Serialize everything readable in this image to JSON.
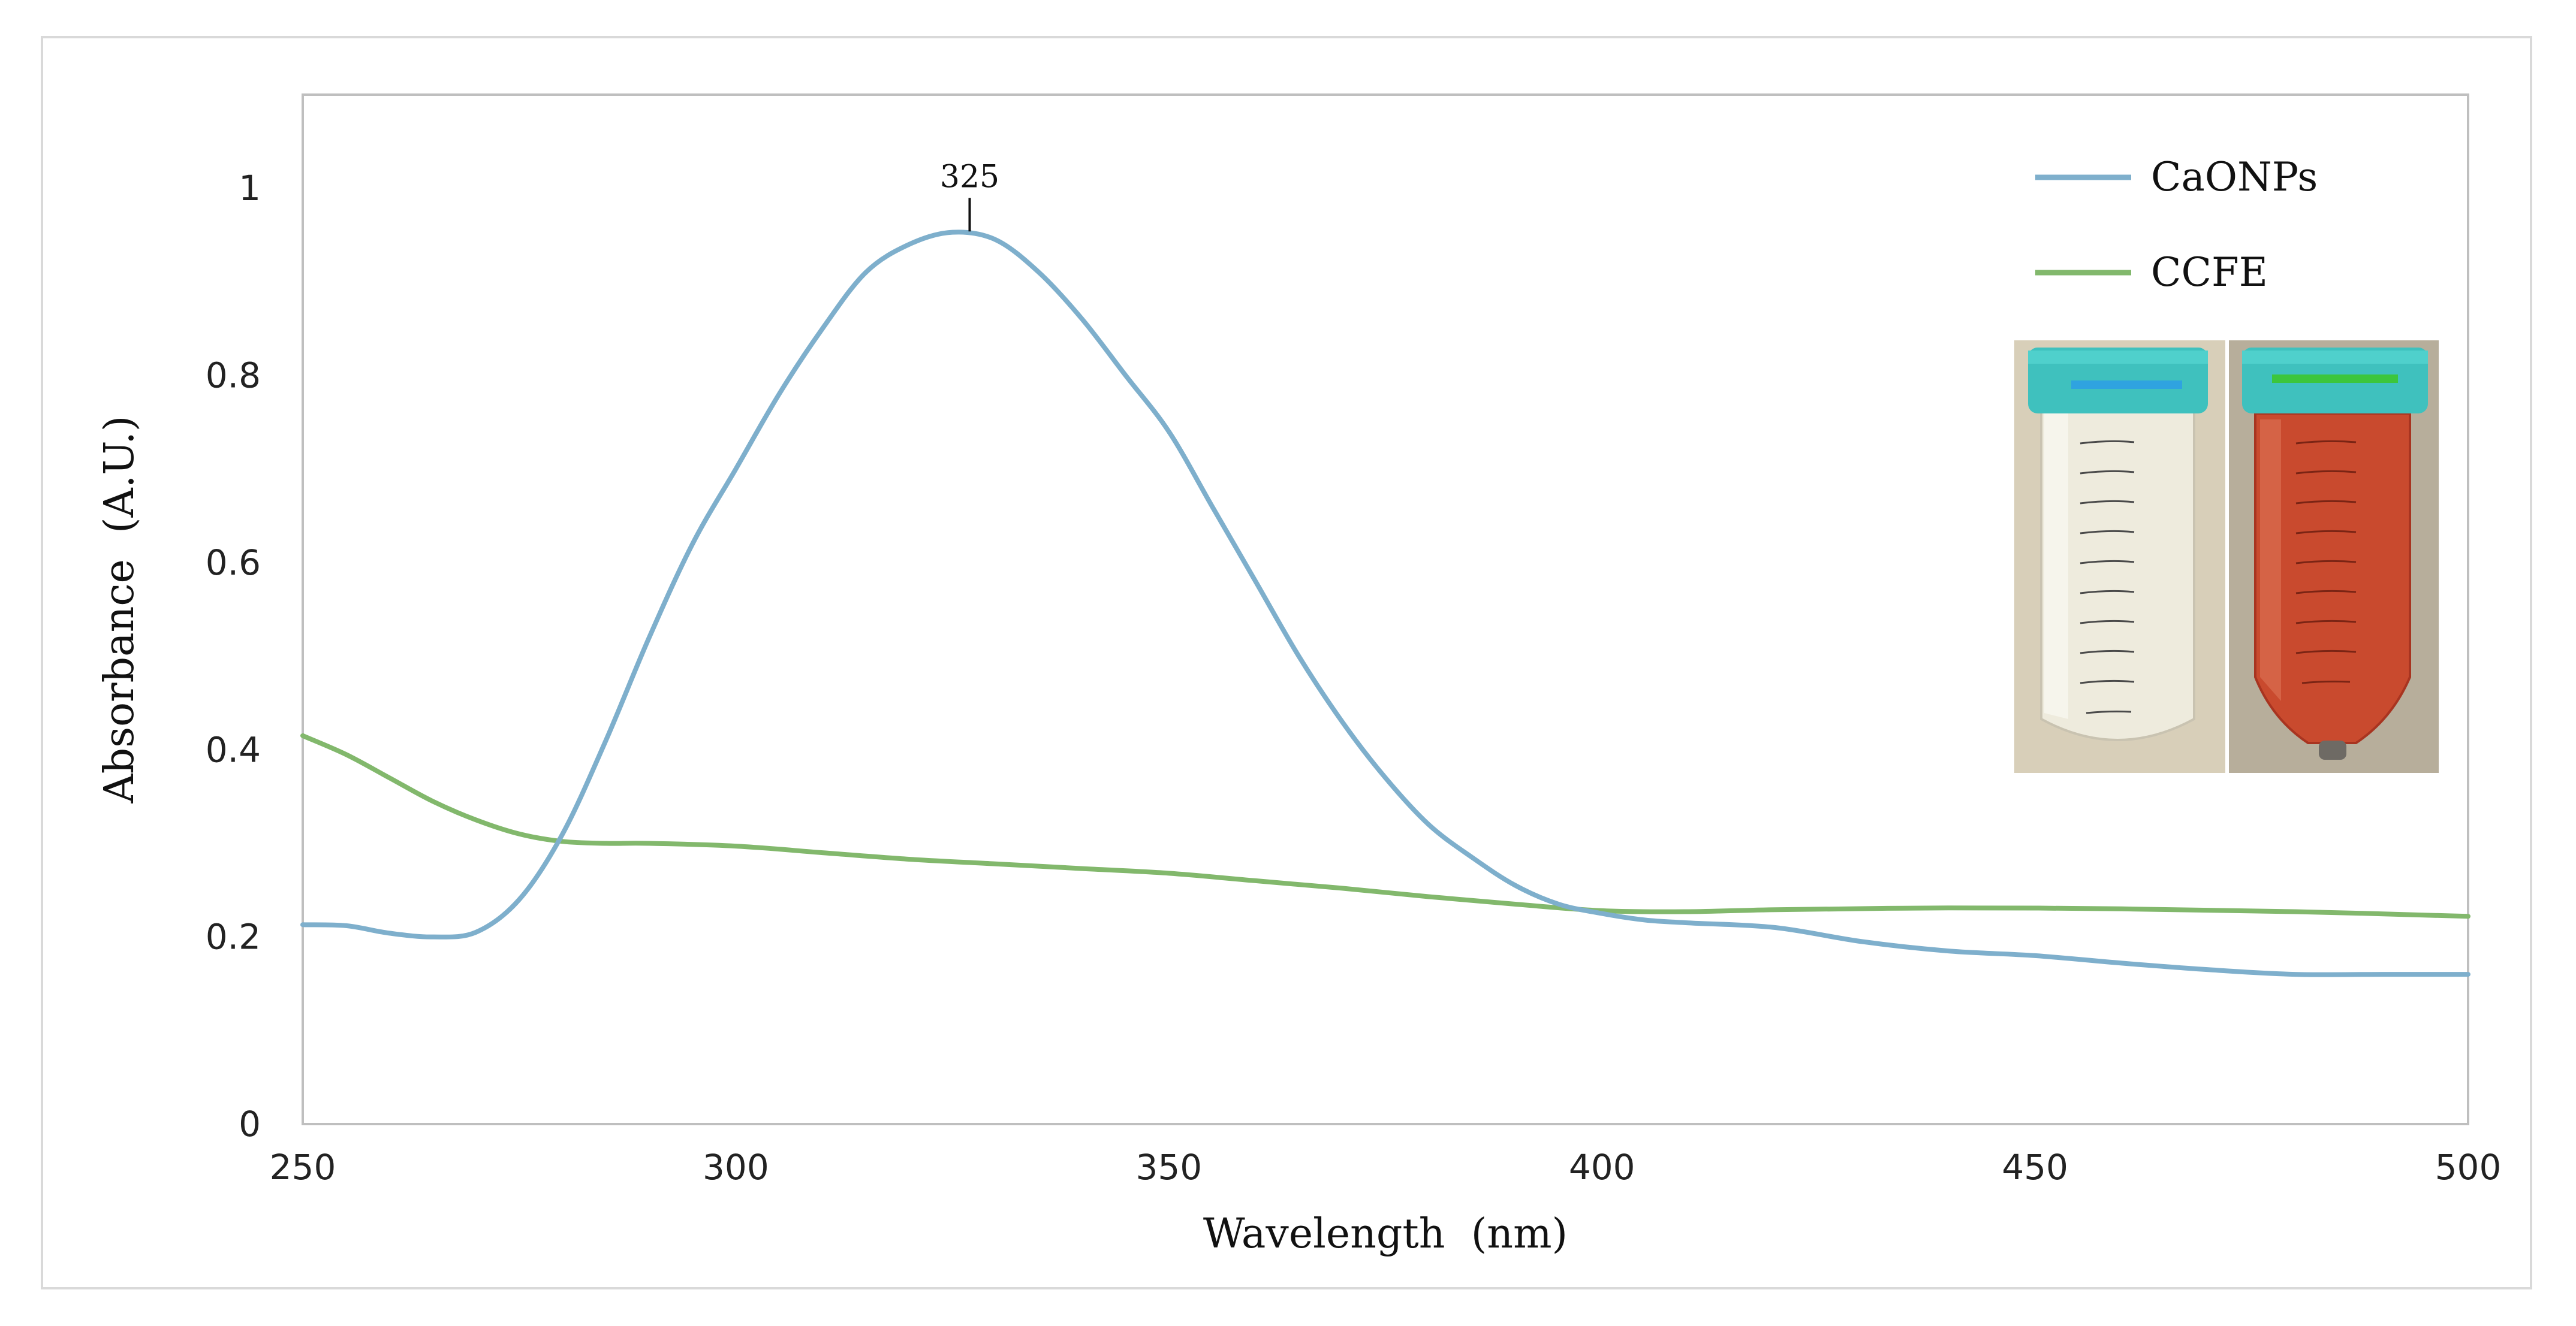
{
  "colors": {
    "caonps": "#7EAFCC",
    "ccfe": "#82B86C",
    "axis": "#BFBFBF",
    "text": "#111111",
    "cap_teal": "#3FC1BE",
    "solution_white": "#E9E6D8",
    "solution_red": "#C8432B"
  },
  "chart_data": {
    "type": "line",
    "title": "",
    "xlabel": "Wavelength  (nm)",
    "ylabel": "Absorbance  (A.U.)",
    "xlim": [
      250,
      500
    ],
    "ylim": [
      0,
      1.1
    ],
    "x_ticks": [
      250,
      300,
      350,
      400,
      450,
      500
    ],
    "y_ticks": [
      0,
      0.2,
      0.4,
      0.6,
      0.8,
      1
    ],
    "x_tick_labels": [
      "250",
      "300",
      "350",
      "400",
      "450",
      "500"
    ],
    "y_tick_labels": [
      "0",
      "0.2",
      "0.4",
      "0.6",
      "0.8",
      "1"
    ],
    "grid": false,
    "legend_position": "top-right",
    "annotations": [
      {
        "text": "325",
        "x": 327,
        "y": 0.95
      }
    ],
    "series": [
      {
        "name": "CaONPs",
        "color": "#7EAFCC",
        "x": [
          250,
          255,
          260,
          265,
          270,
          275,
          280,
          285,
          290,
          295,
          300,
          305,
          310,
          315,
          320,
          325,
          330,
          335,
          340,
          345,
          350,
          355,
          360,
          365,
          370,
          375,
          380,
          385,
          390,
          395,
          400,
          405,
          410,
          420,
          430,
          440,
          450,
          460,
          470,
          480,
          490,
          500
        ],
        "y": [
          0.213,
          0.212,
          0.204,
          0.2,
          0.205,
          0.24,
          0.31,
          0.41,
          0.52,
          0.62,
          0.7,
          0.78,
          0.85,
          0.91,
          0.94,
          0.953,
          0.945,
          0.91,
          0.86,
          0.8,
          0.74,
          0.66,
          0.58,
          0.5,
          0.43,
          0.37,
          0.32,
          0.285,
          0.255,
          0.235,
          0.225,
          0.218,
          0.215,
          0.21,
          0.195,
          0.185,
          0.18,
          0.172,
          0.165,
          0.16,
          0.16,
          0.16
        ]
      },
      {
        "name": "CCFE",
        "color": "#82B86C",
        "x": [
          250,
          255,
          260,
          265,
          270,
          275,
          280,
          285,
          290,
          300,
          310,
          320,
          330,
          340,
          350,
          360,
          370,
          380,
          390,
          400,
          410,
          420,
          440,
          460,
          480,
          500
        ],
        "y": [
          0.415,
          0.395,
          0.37,
          0.345,
          0.325,
          0.31,
          0.302,
          0.3,
          0.3,
          0.297,
          0.29,
          0.283,
          0.278,
          0.273,
          0.268,
          0.26,
          0.252,
          0.243,
          0.235,
          0.228,
          0.227,
          0.229,
          0.231,
          0.23,
          0.227,
          0.222
        ]
      }
    ]
  }
}
